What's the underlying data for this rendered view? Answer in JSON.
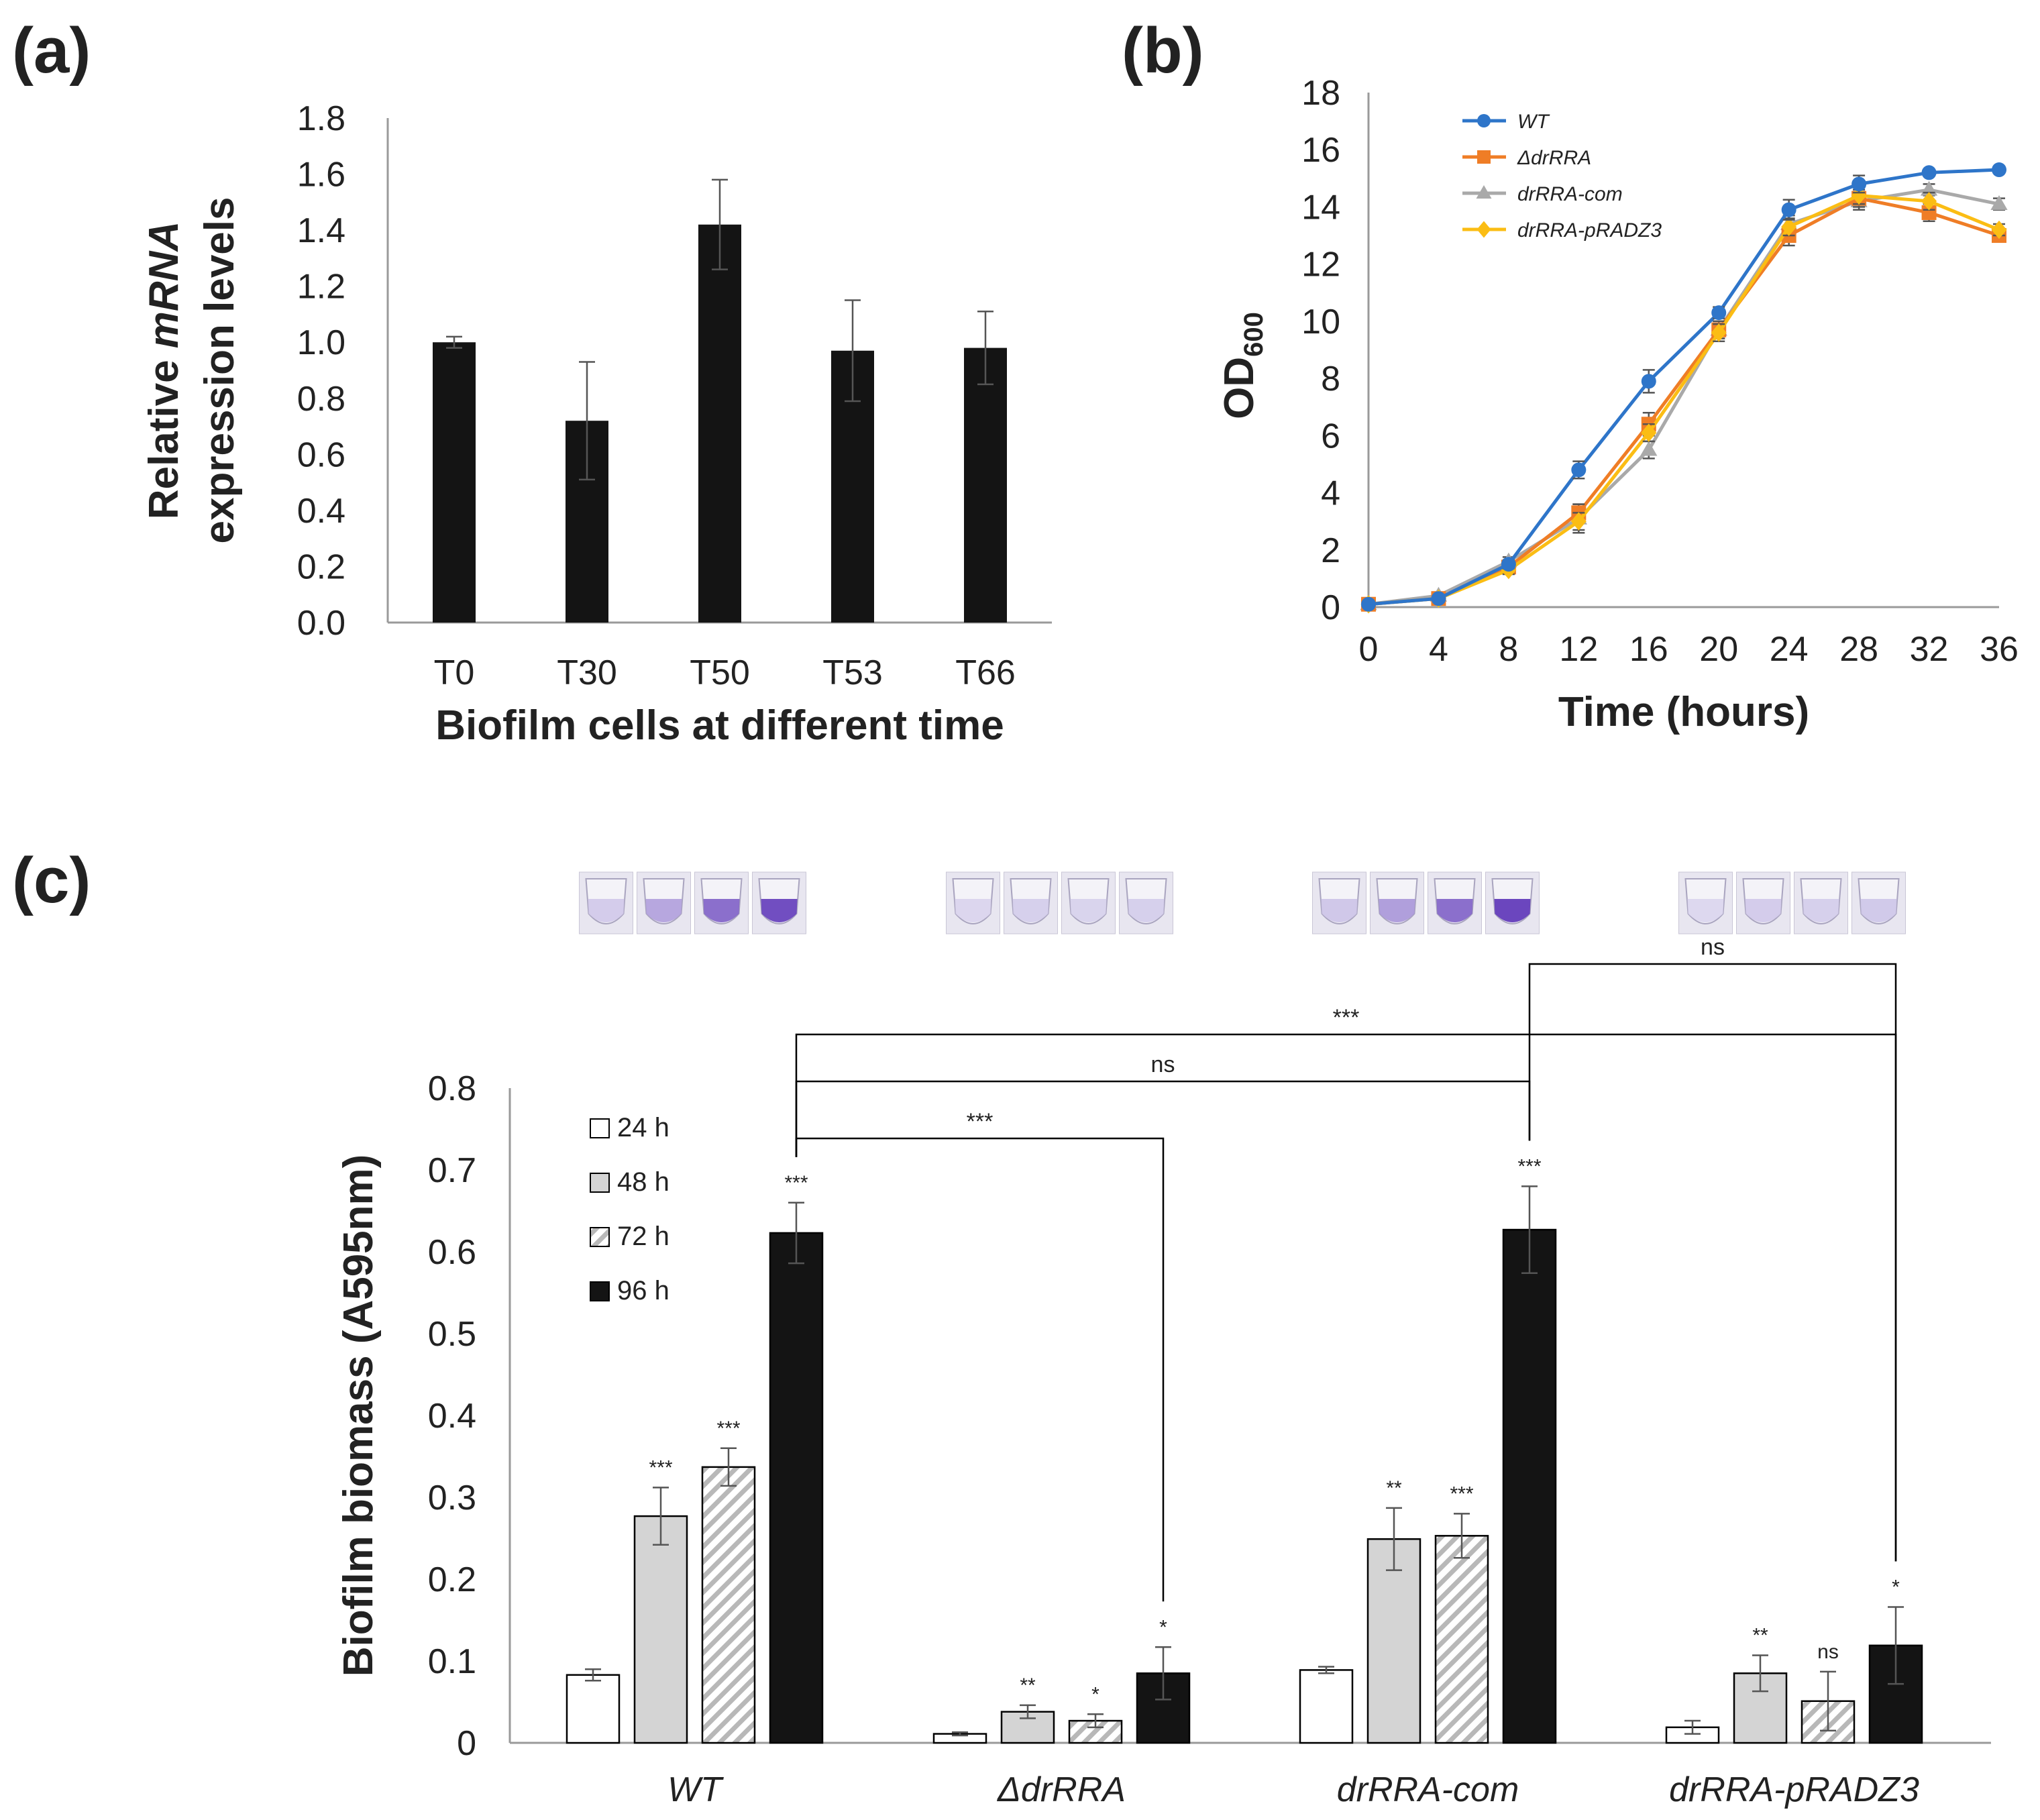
{
  "panels": {
    "a": "(a)",
    "b": "(b)",
    "c": "(c)"
  },
  "colors": {
    "bar_dark": "#141414",
    "wt": "#2e75c9",
    "drRRA": "#ef7d26",
    "com": "#a9a9a9",
    "pRADZ3": "#fbbd14",
    "gray_fill": "#d4d4d4",
    "err": "#555555"
  },
  "chart_data": [
    {
      "id": "a",
      "type": "bar",
      "categories": [
        "T0",
        "T30",
        "T50",
        "T53",
        "T66"
      ],
      "values": [
        1.0,
        0.72,
        1.42,
        0.97,
        0.98
      ],
      "errors": [
        0.02,
        0.21,
        0.16,
        0.18,
        0.13
      ],
      "ylabel_prefix": "Relative ",
      "ylabel_italic": "mRNA",
      "ylabel_line2": "expression levels",
      "xlabel": "Biofilm cells at different time",
      "ylim": [
        0,
        1.8
      ],
      "yticks": [
        "0.0",
        "0.2",
        "0.4",
        "0.6",
        "0.8",
        "1.0",
        "1.2",
        "1.4",
        "1.6",
        "1.8"
      ]
    },
    {
      "id": "b",
      "type": "line",
      "x": [
        0,
        4,
        8,
        12,
        16,
        20,
        24,
        28,
        32,
        36
      ],
      "xticks": [
        "0",
        "4",
        "8",
        "12",
        "16",
        "20",
        "24",
        "28",
        "32",
        "36"
      ],
      "yticks": [
        "0",
        "2",
        "4",
        "6",
        "8",
        "10",
        "12",
        "14",
        "16",
        "18"
      ],
      "ylabel": "OD",
      "ylabel_sub": "600",
      "xlabel": "Time (hours)",
      "xlim": [
        0,
        36
      ],
      "ylim": [
        0,
        18
      ],
      "legend_position": "top-left",
      "series": [
        {
          "name": "WT",
          "marker": "circle",
          "values": [
            0.1,
            0.3,
            1.5,
            4.8,
            7.9,
            10.3,
            13.9,
            14.8,
            15.2,
            15.3
          ],
          "errors": [
            0.05,
            0.1,
            0.15,
            0.3,
            0.4,
            0.2,
            0.35,
            0.3,
            0.1,
            0.1
          ]
        },
        {
          "name": "ΔdrRRA",
          "marker": "square",
          "values": [
            0.1,
            0.3,
            1.4,
            3.3,
            6.4,
            9.7,
            13.0,
            14.3,
            13.8,
            13.0
          ],
          "errors": [
            0.05,
            0.1,
            0.15,
            0.3,
            0.4,
            0.3,
            0.35,
            0.3,
            0.3,
            0.2
          ]
        },
        {
          "name": "drRRA-com",
          "marker": "triangle",
          "values": [
            0.1,
            0.4,
            1.6,
            3.1,
            5.5,
            9.7,
            13.4,
            14.2,
            14.6,
            14.1
          ],
          "errors": [
            0.05,
            0.1,
            0.15,
            0.5,
            0.3,
            0.3,
            0.3,
            0.3,
            0.2,
            0.2
          ]
        },
        {
          "name": "drRRA-pRADZ3",
          "marker": "diamond",
          "values": [
            0.1,
            0.3,
            1.3,
            3.0,
            6.1,
            9.6,
            13.3,
            14.4,
            14.2,
            13.2
          ],
          "errors": [
            0.05,
            0.1,
            0.15,
            0.3,
            0.3,
            0.3,
            0.3,
            0.3,
            0.3,
            0.2
          ]
        }
      ]
    },
    {
      "id": "c",
      "type": "bar",
      "categories": [
        "WT",
        "ΔdrRRA",
        "drRRA-com",
        "drRRA-pRADZ3"
      ],
      "ylabel": "Biofilm biomass (A595nm)",
      "ylim": [
        0,
        0.8
      ],
      "yticks": [
        "0",
        "0.1",
        "0.2",
        "0.3",
        "0.4",
        "0.5",
        "0.6",
        "0.7",
        "0.8"
      ],
      "legend_position": "top-left",
      "series": [
        {
          "name": "24 h",
          "pattern": "white",
          "values": [
            0.083,
            0.011,
            0.089,
            0.019
          ],
          "errors": [
            0.007,
            0.002,
            0.004,
            0.008
          ],
          "labels": [
            "",
            "",
            "",
            ""
          ]
        },
        {
          "name": "48 h",
          "pattern": "gray",
          "values": [
            0.277,
            0.038,
            0.249,
            0.085
          ],
          "errors": [
            0.035,
            0.008,
            0.038,
            0.022
          ],
          "labels": [
            "***",
            "**",
            "**",
            "**"
          ]
        },
        {
          "name": "72 h",
          "pattern": "hatched",
          "values": [
            0.337,
            0.027,
            0.253,
            0.051
          ],
          "errors": [
            0.023,
            0.008,
            0.027,
            0.036
          ],
          "labels": [
            "***",
            "*",
            "***",
            "ns"
          ]
        },
        {
          "name": "96 h",
          "pattern": "black",
          "values": [
            0.623,
            0.085,
            0.627,
            0.119
          ],
          "errors": [
            0.037,
            0.032,
            0.053,
            0.047
          ],
          "labels": [
            "***",
            "*",
            "***",
            "*"
          ]
        }
      ],
      "comparisons": [
        {
          "from": "drRRA-com",
          "to": "drRRA-pRADZ3",
          "label": "ns"
        },
        {
          "from": "WT",
          "to": "drRRA-pRADZ3",
          "label": "***"
        },
        {
          "from": "WT",
          "to": "drRRA-com",
          "label": "ns"
        },
        {
          "from": "WT",
          "to": "ΔdrRRA",
          "label": "***"
        }
      ],
      "well_stain": [
        [
          0.12,
          0.35,
          0.7,
          0.9
        ],
        [
          0.06,
          0.1,
          0.08,
          0.1
        ],
        [
          0.15,
          0.4,
          0.7,
          0.95
        ],
        [
          0.05,
          0.12,
          0.1,
          0.14
        ]
      ]
    }
  ]
}
